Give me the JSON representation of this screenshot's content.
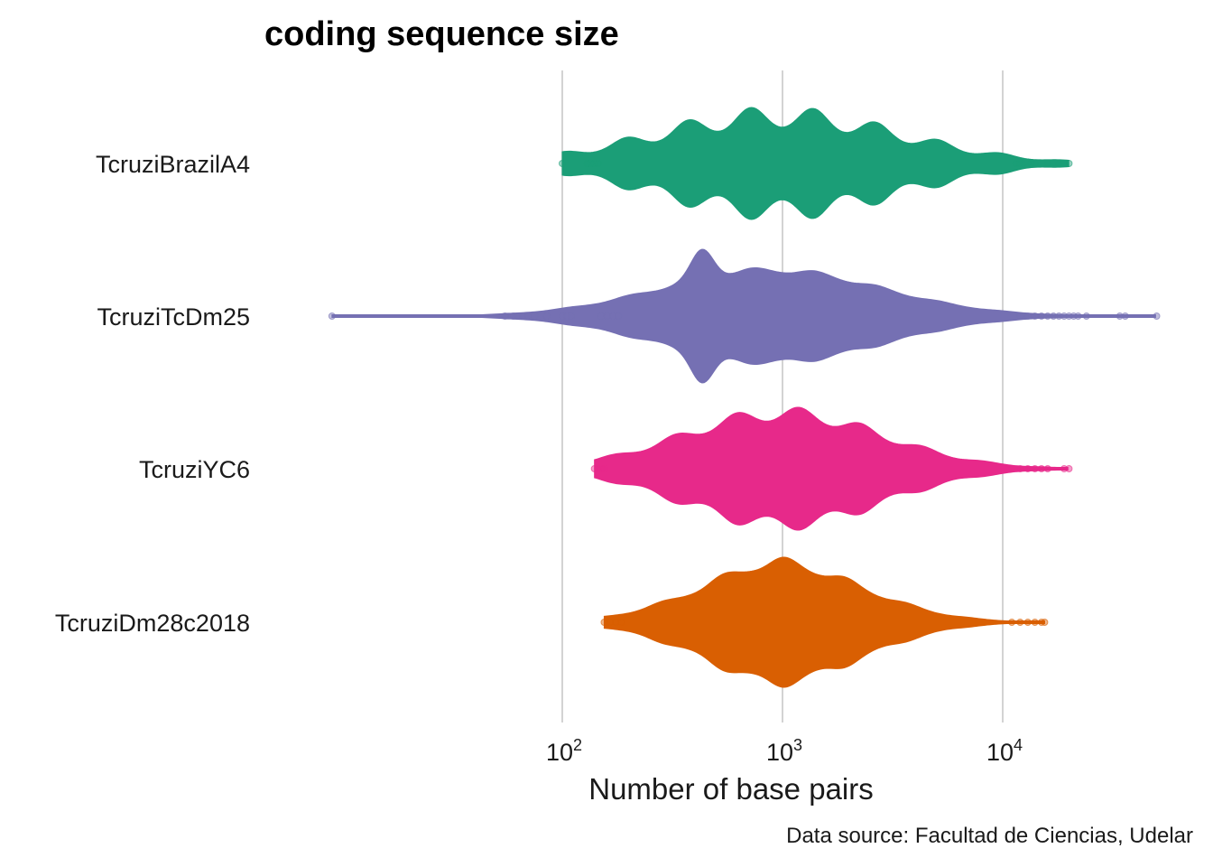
{
  "chart_data": {
    "type": "violin",
    "title": "coding sequence size",
    "xlabel": "Number of base pairs",
    "ylabel": "",
    "caption": "Data source: Facultad de Ciencias, Udelar",
    "x_scale": "log10",
    "xlim": [
      1,
      100000
    ],
    "x_ticks": [
      {
        "value": 100,
        "base": "10",
        "exp": "2"
      },
      {
        "value": 1000,
        "base": "10",
        "exp": "3"
      },
      {
        "value": 10000,
        "base": "10",
        "exp": "4"
      }
    ],
    "grid": "vertical major",
    "legend": "none",
    "series": [
      {
        "name": "TcruziBrazilA4",
        "color": "#1b9e77",
        "min": 100,
        "max": 20000,
        "median": 1000,
        "outliers": [
          100,
          130,
          135,
          140,
          145,
          11500,
          12000,
          12500,
          13000,
          13500,
          14000,
          16000,
          18000,
          19000,
          20000
        ]
      },
      {
        "name": "TcruziTcDm25",
        "color": "#7570b3",
        "min": 9,
        "max": 50000,
        "median": 1000,
        "outliers": [
          9,
          55,
          60,
          63,
          66,
          70,
          75,
          85,
          100,
          105,
          110,
          150,
          160,
          170,
          180,
          12000,
          13000,
          14000,
          15000,
          16000,
          17000,
          18000,
          19000,
          20000,
          21000,
          22000,
          24000,
          34000,
          36000,
          50000
        ]
      },
      {
        "name": "TcruziYC6",
        "color": "#e7298a",
        "min": 140,
        "max": 20000,
        "median": 1000,
        "outliers": [
          140,
          145,
          150,
          155,
          12000,
          13000,
          14000,
          15000,
          16000,
          19000,
          20000
        ]
      },
      {
        "name": "TcruziDm28c2018",
        "color": "#d95f02",
        "min": 155,
        "max": 15500,
        "median": 1100,
        "outliers": [
          155,
          165,
          175,
          185,
          11000,
          12000,
          13000,
          14000,
          15000,
          15500
        ]
      }
    ]
  }
}
